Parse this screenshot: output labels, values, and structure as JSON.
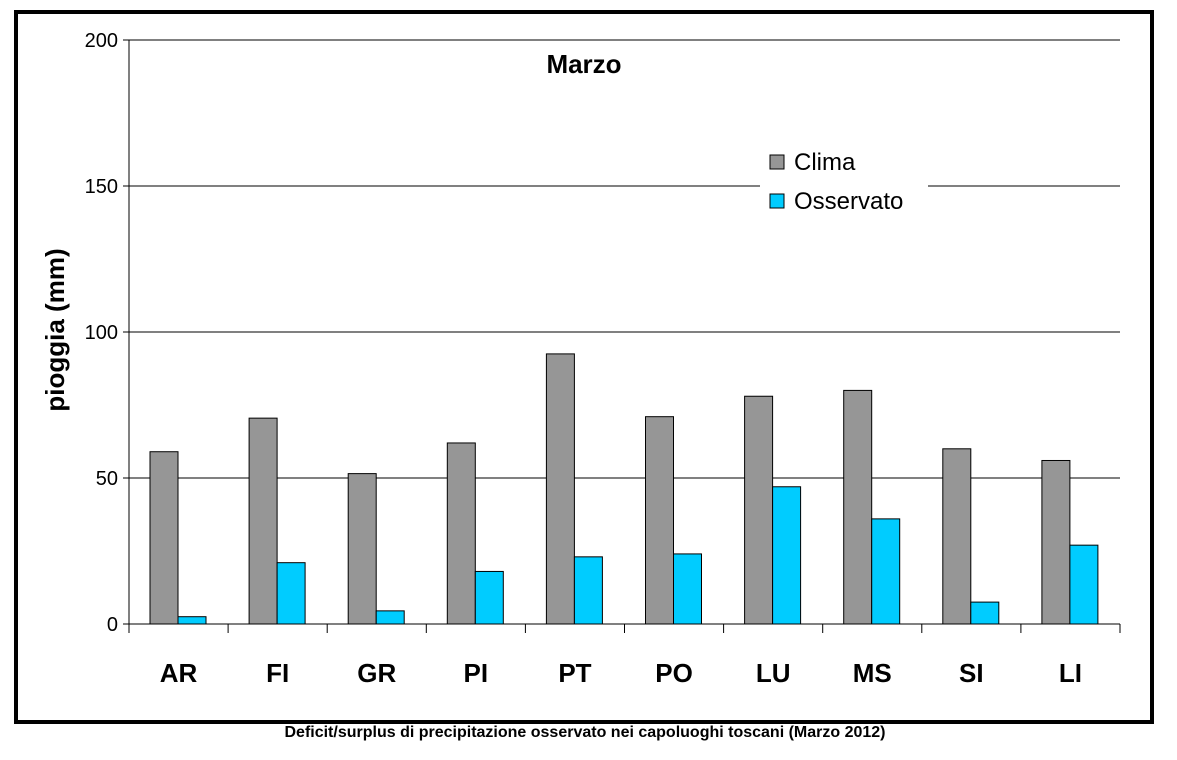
{
  "caption": "Deficit/surplus di precipitazione osservato nei capoluoghi toscani (Marzo 2012)",
  "chart_data": {
    "type": "bar",
    "title": "Marzo",
    "xlabel": "",
    "ylabel": "pioggia (mm)",
    "ylim": [
      0,
      200
    ],
    "yticks": [
      0,
      50,
      100,
      150,
      200
    ],
    "grid": true,
    "legend_position": "top-right",
    "categories": [
      "AR",
      "FI",
      "GR",
      "PI",
      "PT",
      "PO",
      "LU",
      "MS",
      "SI",
      "LI"
    ],
    "series": [
      {
        "name": "Clima",
        "color": "#969696",
        "values": [
          59,
          70.5,
          51.5,
          62,
          92.5,
          71,
          78,
          80,
          60,
          56
        ]
      },
      {
        "name": "Osservato",
        "color": "#00ccff",
        "values": [
          2.5,
          21,
          4.5,
          18,
          23,
          24,
          47,
          36,
          7.5,
          27
        ]
      }
    ]
  }
}
